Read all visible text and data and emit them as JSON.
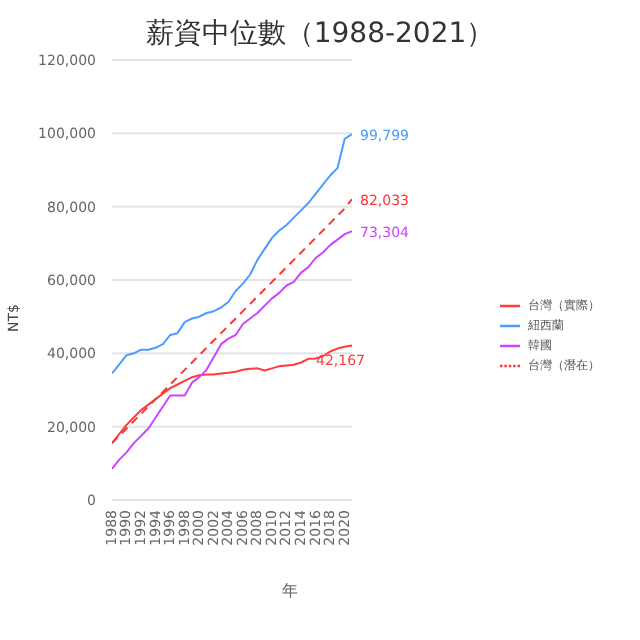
{
  "chart_data": {
    "type": "line",
    "title": "薪資中位數（1988-2021）",
    "xlabel": "年",
    "ylabel": "NT$",
    "x": [
      1988,
      1989,
      1990,
      1991,
      1992,
      1993,
      1994,
      1995,
      1996,
      1997,
      1998,
      1999,
      2000,
      2001,
      2002,
      2003,
      2004,
      2005,
      2006,
      2007,
      2008,
      2009,
      2010,
      2011,
      2012,
      2013,
      2014,
      2015,
      2016,
      2017,
      2018,
      2019,
      2020,
      2021
    ],
    "xlim": [
      1988,
      2021
    ],
    "xticks": [
      1988,
      1990,
      1992,
      1994,
      1996,
      1998,
      2000,
      2002,
      2004,
      2006,
      2008,
      2010,
      2012,
      2014,
      2016,
      2018,
      2020
    ],
    "ylim": [
      0,
      120000
    ],
    "yticks": [
      {
        "value": 0,
        "label": "0"
      },
      {
        "value": 20000,
        "label": "20,000"
      },
      {
        "value": 40000,
        "label": "40,000"
      },
      {
        "value": 60000,
        "label": "60,000"
      },
      {
        "value": 80000,
        "label": "80,000"
      },
      {
        "value": 100000,
        "label": "100,000"
      },
      {
        "value": 120000,
        "label": "120,000"
      }
    ],
    "grid": "y",
    "legend": "right",
    "marker": "none",
    "series": [
      {
        "name": "台灣（實際）",
        "color": "#ff3b3b",
        "line_style": "solid",
        "values": [
          15500,
          18000,
          20500,
          22500,
          24500,
          26000,
          27500,
          29000,
          30500,
          31500,
          32500,
          33500,
          34000,
          34200,
          34200,
          34500,
          34700,
          35000,
          35500,
          35800,
          35900,
          35300,
          35900,
          36500,
          36700,
          36900,
          37500,
          38500,
          38600,
          39200,
          40500,
          41300,
          41800,
          42167
        ],
        "value_labels": [
          null,
          null,
          null,
          null,
          null,
          null,
          null,
          null,
          null,
          null,
          null,
          null,
          null,
          null,
          null,
          null,
          null,
          null,
          null,
          null,
          null,
          null,
          null,
          null,
          null,
          null,
          null,
          null,
          null,
          null,
          null,
          null,
          null,
          "42,167"
        ]
      },
      {
        "name": "紐西蘭",
        "color": "#4a9cff",
        "line_style": "solid",
        "values": [
          34500,
          37000,
          39500,
          40000,
          41000,
          41000,
          41500,
          42500,
          45000,
          45500,
          48500,
          49500,
          50000,
          51000,
          51500,
          52500,
          54000,
          57000,
          59000,
          61500,
          65500,
          68500,
          71500,
          73500,
          75000,
          77000,
          79000,
          81000,
          83500,
          86000,
          88500,
          90500,
          98500,
          99799
        ],
        "value_labels": [
          null,
          null,
          null,
          null,
          null,
          null,
          null,
          null,
          null,
          null,
          null,
          null,
          null,
          null,
          null,
          null,
          null,
          null,
          null,
          null,
          null,
          null,
          null,
          null,
          null,
          null,
          null,
          null,
          null,
          null,
          null,
          null,
          null,
          "99,799"
        ]
      },
      {
        "name": "韓國",
        "color": "#cc44ff",
        "line_style": "solid",
        "values": [
          8500,
          11000,
          13000,
          15500,
          17500,
          19500,
          22500,
          25500,
          28500,
          28500,
          28500,
          32000,
          33500,
          35500,
          39000,
          42500,
          44000,
          45000,
          48000,
          49500,
          51000,
          53000,
          55000,
          56500,
          58500,
          59500,
          62000,
          63500,
          66000,
          67500,
          69500,
          71000,
          72500,
          73304
        ],
        "value_labels": [
          null,
          null,
          null,
          null,
          null,
          null,
          null,
          null,
          null,
          null,
          null,
          null,
          null,
          null,
          null,
          null,
          null,
          null,
          null,
          null,
          null,
          null,
          null,
          null,
          null,
          null,
          null,
          null,
          null,
          null,
          null,
          null,
          null,
          "73,304"
        ]
      },
      {
        "name": "台灣（潛在）",
        "color": "#ff3333",
        "line_style": "dashed",
        "values": [
          15500,
          17500,
          19500,
          21500,
          23500,
          25500,
          27500,
          29500,
          31500,
          33500,
          35500,
          37500,
          39500,
          41500,
          43500,
          45500,
          47500,
          49500,
          51500,
          53500,
          55500,
          57500,
          59500,
          61500,
          63500,
          65500,
          67500,
          69500,
          71500,
          73500,
          75500,
          77500,
          79500,
          82033
        ],
        "value_labels": [
          null,
          null,
          null,
          null,
          null,
          null,
          null,
          null,
          null,
          null,
          null,
          null,
          null,
          null,
          null,
          null,
          null,
          null,
          null,
          null,
          null,
          null,
          null,
          null,
          null,
          null,
          null,
          null,
          null,
          null,
          null,
          null,
          null,
          "82,033"
        ]
      }
    ]
  }
}
